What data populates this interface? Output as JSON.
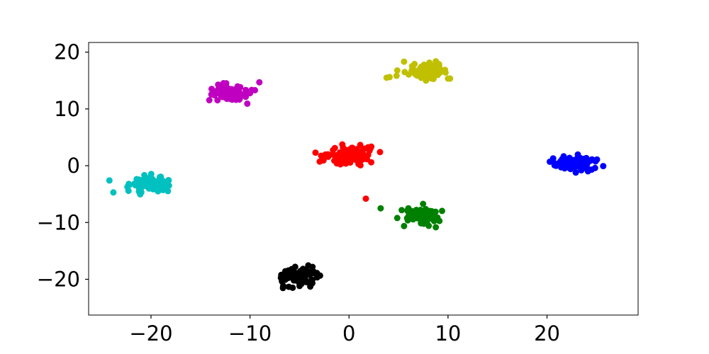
{
  "chart_data": {
    "type": "scatter",
    "title": "",
    "xlabel": "",
    "ylabel": "",
    "xlim": [
      -26.3,
      29.2
    ],
    "ylim": [
      -26.3,
      21.7
    ],
    "xticks": [
      -20,
      -10,
      0,
      10,
      20
    ],
    "xtick_labels": [
      "−20",
      "−10",
      "0",
      "10",
      "20"
    ],
    "yticks": [
      -20,
      -10,
      0,
      10,
      20
    ],
    "ytick_labels": [
      "−20",
      "−10",
      "0",
      "10",
      "20"
    ],
    "grid": false,
    "legend": "none",
    "series": [
      {
        "color": "#ff0000",
        "cluster": {
          "center": [
            0.3,
            1.6
          ],
          "spread": [
            2.4,
            1.5
          ],
          "count": 85
        },
        "outliers": [
          [
            1.7,
            -5.8
          ]
        ]
      },
      {
        "color": "#c000c0",
        "cluster": {
          "center": [
            -11.8,
            12.8
          ],
          "spread": [
            2.0,
            1.3
          ],
          "count": 85
        }
      },
      {
        "color": "#c0c000",
        "cluster": {
          "center": [
            8.0,
            16.8
          ],
          "spread": [
            2.0,
            1.3
          ],
          "count": 85
        },
        "outliers": [
          [
            4.1,
            15.6
          ],
          [
            3.8,
            15.5
          ]
        ]
      },
      {
        "color": "#00c0c0",
        "cluster": {
          "center": [
            -20.0,
            -3.3
          ],
          "spread": [
            1.8,
            1.3
          ],
          "count": 85
        },
        "outliers": [
          [
            -24.2,
            -2.6
          ],
          [
            -23.8,
            -4.7
          ]
        ]
      },
      {
        "color": "#0000ff",
        "cluster": {
          "center": [
            22.8,
            0.4
          ],
          "spread": [
            1.8,
            1.0
          ],
          "count": 85
        }
      },
      {
        "color": "#008000",
        "cluster": {
          "center": [
            7.2,
            -8.8
          ],
          "spread": [
            1.7,
            1.3
          ],
          "count": 85
        },
        "outliers": [
          [
            3.2,
            -7.5
          ]
        ]
      },
      {
        "color": "#000000",
        "cluster": {
          "center": [
            -4.9,
            -19.6
          ],
          "spread": [
            1.6,
            1.4
          ],
          "count": 85
        }
      }
    ]
  }
}
